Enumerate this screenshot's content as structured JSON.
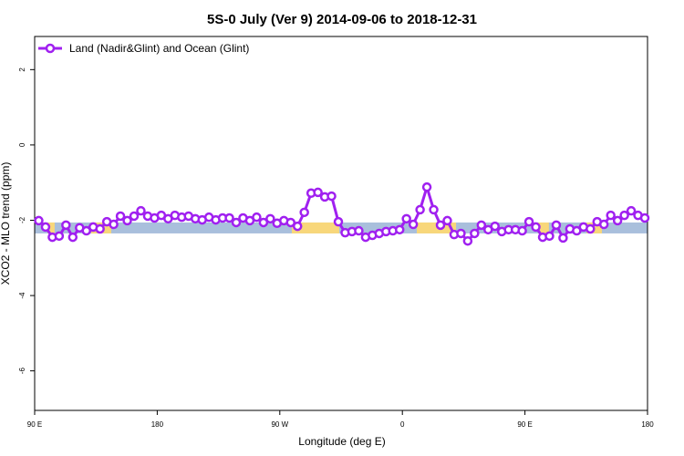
{
  "chart_data": {
    "type": "line",
    "title": "5S-0 July (Ver 9)   2014-09-06 to 2018-12-31",
    "x_label": "Longitude (deg E)",
    "y_label": "XCO2 - MLO trend (ppm)",
    "xlim": [
      90,
      540
    ],
    "ylim": [
      -7.05,
      2.88
    ],
    "xticks": [
      {
        "value": 90,
        "label": "90 E"
      },
      180,
      {
        "value": 270,
        "label": "90 W"
      },
      {
        "value": 360,
        "label": "0"
      },
      {
        "value": 450,
        "label": "90 E"
      },
      {
        "value": 540,
        "label": "180"
      }
    ],
    "yticks": [
      -6,
      -4,
      -2,
      0,
      2
    ],
    "legend": "top-left",
    "band": {
      "ylim": [
        -2.06,
        -2.35
      ],
      "ocean_color": "#a9bfdc",
      "land_color": "#f8d77a",
      "land_ranges": [
        [
          99.4,
          104.7
        ],
        [
          131.5,
          146.2
        ],
        [
          278.8,
          313.6
        ],
        [
          370.6,
          399.4
        ],
        [
          459.6,
          467.6
        ],
        [
          495.1,
          506.5
        ]
      ]
    },
    "x": [
      93,
      98,
      103,
      108,
      113,
      118,
      123,
      128,
      133,
      138,
      143,
      148,
      153,
      158,
      163,
      168,
      173,
      178,
      183,
      188,
      193,
      198,
      203,
      208,
      213,
      218,
      223,
      228,
      233,
      238,
      243,
      248,
      253,
      258,
      263,
      268,
      273,
      278,
      283,
      288,
      293,
      298,
      303,
      308,
      313,
      318,
      323,
      328,
      333,
      338,
      343,
      348,
      353,
      358,
      363,
      368,
      373,
      378,
      383,
      388,
      393,
      398,
      403,
      408,
      413,
      418,
      423,
      428,
      433,
      438,
      443,
      448,
      453,
      458,
      463,
      468,
      473,
      478,
      483,
      488,
      493,
      498,
      503,
      508,
      513,
      518,
      523,
      528,
      533,
      538
    ],
    "series": [
      {
        "name": "Land (Nadir&Glint) and Ocean (Glint)",
        "color": "#a020f0",
        "values": [
          -2.01,
          -2.18,
          -2.45,
          -2.42,
          -2.13,
          -2.45,
          -2.2,
          -2.28,
          -2.18,
          -2.23,
          -2.04,
          -2.11,
          -1.89,
          -2.01,
          -1.89,
          -1.75,
          -1.89,
          -1.94,
          -1.87,
          -1.96,
          -1.87,
          -1.92,
          -1.89,
          -1.96,
          -1.99,
          -1.92,
          -1.99,
          -1.94,
          -1.94,
          -2.06,
          -1.94,
          -2.01,
          -1.92,
          -2.06,
          -1.96,
          -2.08,
          -2.01,
          -2.06,
          -2.16,
          -1.79,
          -1.28,
          -1.26,
          -1.38,
          -1.36,
          -2.04,
          -2.33,
          -2.3,
          -2.28,
          -2.45,
          -2.4,
          -2.35,
          -2.3,
          -2.28,
          -2.25,
          -1.96,
          -2.11,
          -1.72,
          -1.12,
          -1.72,
          -2.13,
          -2.01,
          -2.38,
          -2.35,
          -2.55,
          -2.35,
          -2.13,
          -2.25,
          -2.16,
          -2.3,
          -2.25,
          -2.25,
          -2.28,
          -2.04,
          -2.18,
          -2.45,
          -2.42,
          -2.13,
          -2.47,
          -2.23,
          -2.28,
          -2.18,
          -2.23,
          -2.04,
          -2.11,
          -1.87,
          -2.01,
          -1.87,
          -1.75,
          -1.87,
          -1.94
        ]
      }
    ]
  }
}
